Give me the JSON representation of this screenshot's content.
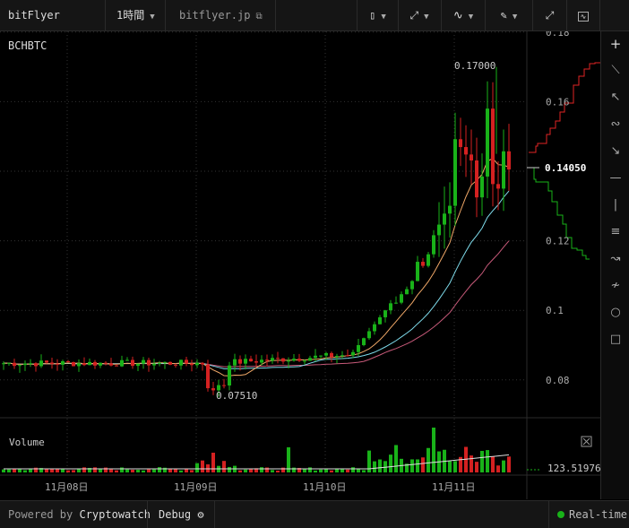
{
  "topbar": {
    "market": "bitFlyer BCHBTC",
    "interval": "1時間",
    "source": "bitflyer.jp",
    "tools": [
      "candle-style-icon",
      "indicator-icon",
      "line-icon",
      "draw-icon",
      "fullscreen-icon",
      "snapshot-icon"
    ]
  },
  "price_axis": {
    "labels": [
      "0.18",
      "0.16",
      "0.14050",
      "0.12",
      "0.1",
      "0.08"
    ],
    "current_price": "0.14050"
  },
  "annotations": {
    "high": "0.17000",
    "low": "0.07510"
  },
  "volume_panel": {
    "label": "Volume",
    "value": "123.51976"
  },
  "time_axis": {
    "labels": [
      "11月08日",
      "11月09日",
      "11月10日",
      "11月11日"
    ]
  },
  "bottombar": {
    "powered_by": "Powered by",
    "brand": "Cryptowatch",
    "debug": "Debug",
    "status": "Real-time"
  },
  "colors": {
    "up": "#19b219",
    "down": "#d42121",
    "background": "#000000",
    "grid": "#333333",
    "ma_fast": "#f0a868",
    "ma_mid": "#7fdcec",
    "ma_slow": "#c85a7a"
  },
  "right_toolbar": [
    "crosshair-icon",
    "line-tool-icon",
    "arrow-tool-icon",
    "curve-tool-icon",
    "arrow-down-icon",
    "horizontal-line-icon",
    "vertical-line-icon",
    "fib-icon",
    "pitchfork-icon",
    "fan-icon",
    "circle-icon",
    "rectangle-icon"
  ],
  "chart_data": {
    "type": "candlestick",
    "interval": "1時間",
    "x_labels": [
      "11月08日",
      "11月09日",
      "11月10日",
      "11月11日"
    ],
    "ylim": [
      0.07,
      0.18
    ],
    "high": 0.17,
    "low": 0.0751,
    "last": 0.1405,
    "volume_last": 123.51976
  }
}
